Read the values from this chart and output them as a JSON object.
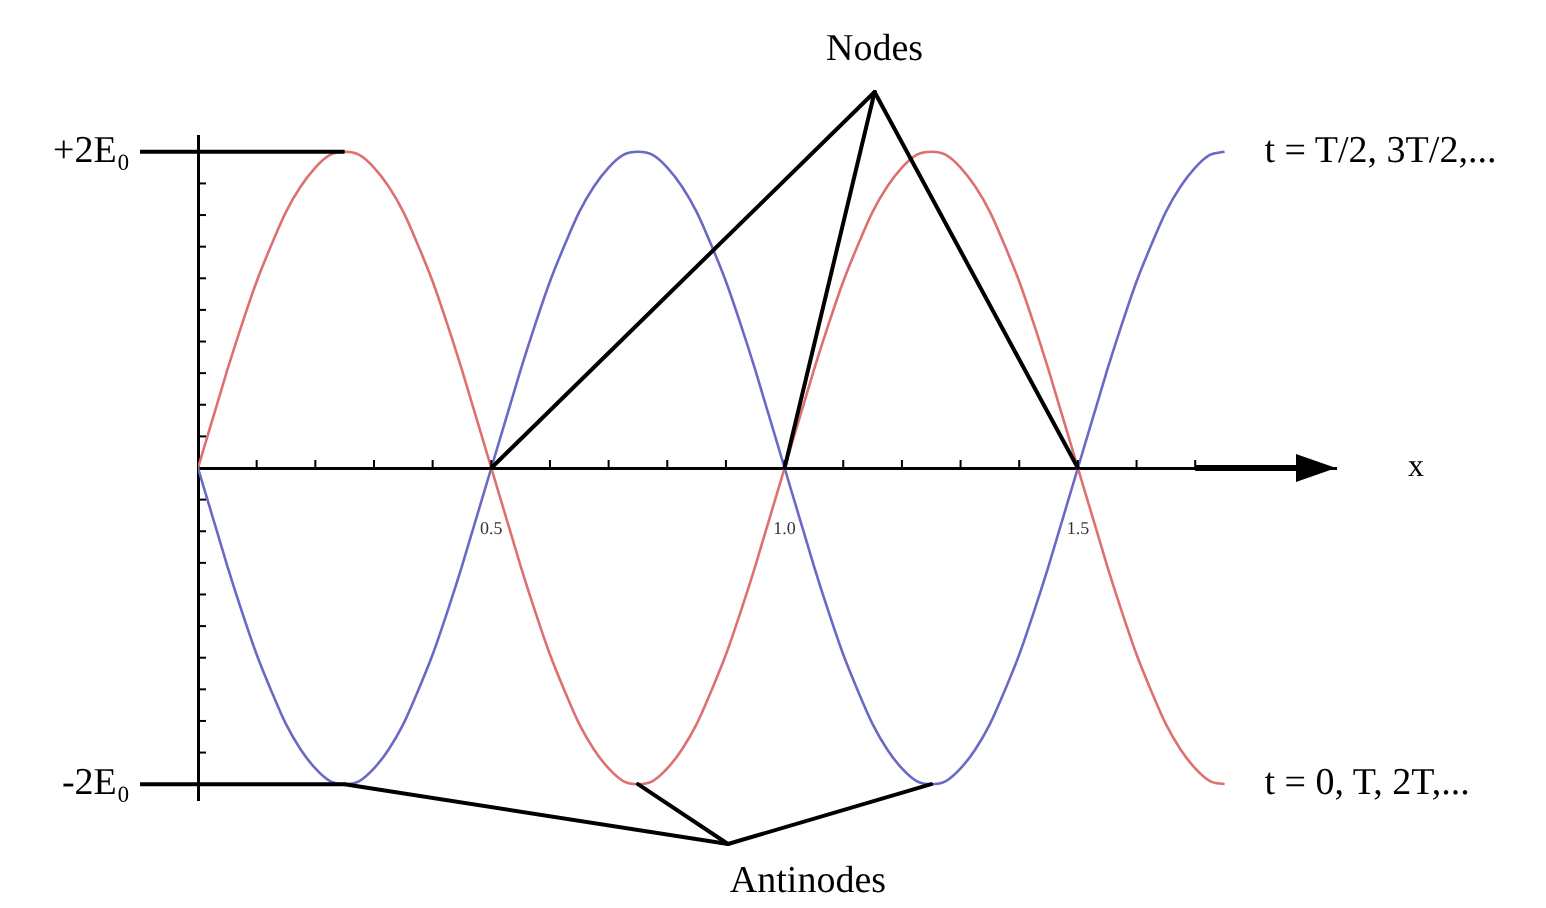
{
  "chart_data": {
    "type": "line",
    "xlabel": "x",
    "x": [
      0,
      0.025,
      0.05,
      0.075,
      0.1,
      0.125,
      0.15,
      0.175,
      0.2,
      0.225,
      0.25,
      0.275,
      0.3,
      0.325,
      0.35,
      0.375,
      0.4,
      0.425,
      0.45,
      0.475,
      0.5,
      0.525,
      0.55,
      0.575,
      0.6,
      0.625,
      0.65,
      0.675,
      0.7,
      0.725,
      0.75,
      0.775,
      0.8,
      0.825,
      0.85,
      0.875,
      0.9,
      0.925,
      0.95,
      0.975,
      1,
      1.025,
      1.05,
      1.075,
      1.1,
      1.125,
      1.15,
      1.175,
      1.2,
      1.225,
      1.25,
      1.275,
      1.3,
      1.325,
      1.35,
      1.375,
      1.4,
      1.425,
      1.45,
      1.475,
      1.5,
      1.525,
      1.55,
      1.575,
      1.6,
      1.625,
      1.65,
      1.675,
      1.7,
      1.725,
      1.75
    ],
    "series": [
      {
        "name": "t = 0, T, 2T,...",
        "color": "#dd7070",
        "values": [
          0,
          0.31,
          0.62,
          0.91,
          1.18,
          1.41,
          1.62,
          1.78,
          1.9,
          1.98,
          2,
          1.98,
          1.9,
          1.78,
          1.62,
          1.41,
          1.18,
          0.91,
          0.62,
          0.31,
          0,
          -0.31,
          -0.62,
          -0.91,
          -1.18,
          -1.41,
          -1.62,
          -1.78,
          -1.9,
          -1.98,
          -2,
          -1.98,
          -1.9,
          -1.78,
          -1.62,
          -1.41,
          -1.18,
          -0.91,
          -0.62,
          -0.31,
          0,
          0.31,
          0.62,
          0.91,
          1.18,
          1.41,
          1.62,
          1.78,
          1.9,
          1.98,
          2,
          1.98,
          1.9,
          1.78,
          1.62,
          1.41,
          1.18,
          0.91,
          0.62,
          0.31,
          0,
          -0.31,
          -0.62,
          -0.91,
          -1.18,
          -1.41,
          -1.62,
          -1.78,
          -1.9,
          -1.98,
          -2
        ]
      },
      {
        "name": "t = T/2, 3T/2,...",
        "color": "#6a6ac4",
        "values": [
          0,
          -0.31,
          -0.62,
          -0.91,
          -1.18,
          -1.41,
          -1.62,
          -1.78,
          -1.9,
          -1.98,
          -2,
          -1.98,
          -1.9,
          -1.78,
          -1.62,
          -1.41,
          -1.18,
          -0.91,
          -0.62,
          -0.31,
          0,
          0.31,
          0.62,
          0.91,
          1.18,
          1.41,
          1.62,
          1.78,
          1.9,
          1.98,
          2,
          1.98,
          1.9,
          1.78,
          1.62,
          1.41,
          1.18,
          0.91,
          0.62,
          0.31,
          0,
          -0.31,
          -0.62,
          -0.91,
          -1.18,
          -1.41,
          -1.62,
          -1.78,
          -1.9,
          -1.98,
          -2,
          -1.98,
          -1.9,
          -1.78,
          -1.62,
          -1.41,
          -1.18,
          -0.91,
          -0.62,
          -0.31,
          0,
          0.31,
          0.62,
          0.91,
          1.18,
          1.41,
          1.62,
          1.78,
          1.9,
          1.98,
          2
        ]
      }
    ],
    "xlim": [
      0,
      1.94
    ],
    "xticks": [
      {
        "value": 0.1,
        "label": null
      },
      {
        "value": 0.2,
        "label": null
      },
      {
        "value": 0.3,
        "label": null
      },
      {
        "value": 0.4,
        "label": null
      },
      0.5,
      {
        "value": 0.6,
        "label": null
      },
      {
        "value": 0.7,
        "label": null
      },
      {
        "value": 0.8,
        "label": null
      },
      {
        "value": 0.9,
        "label": null
      },
      {
        "value": 1,
        "label": "1.0"
      },
      {
        "value": 1.1,
        "label": null
      },
      {
        "value": 1.2,
        "label": null
      },
      {
        "value": 1.3,
        "label": null
      },
      {
        "value": 1.4,
        "label": null
      },
      1.5,
      {
        "value": 1.6,
        "label": null
      },
      {
        "value": 1.7,
        "label": null
      }
    ],
    "ylim": [
      -2.1,
      2.1
    ],
    "yticks": [
      {
        "value": -2,
        "label": "-2E₀"
      },
      {
        "value": -1.8,
        "label": null
      },
      {
        "value": -1.6,
        "label": null
      },
      {
        "value": -1.4,
        "label": null
      },
      {
        "value": -1.2,
        "label": null
      },
      {
        "value": -1,
        "label": null
      },
      {
        "value": -0.8,
        "label": null
      },
      {
        "value": -0.6,
        "label": null
      },
      {
        "value": -0.4,
        "label": null
      },
      {
        "value": -0.2,
        "label": null
      },
      {
        "value": 0.2,
        "label": null
      },
      {
        "value": 0.4,
        "label": null
      },
      {
        "value": 0.6,
        "label": null
      },
      {
        "value": 0.8,
        "label": null
      },
      {
        "value": 1,
        "label": null
      },
      {
        "value": 1.2,
        "label": null
      },
      {
        "value": 1.4,
        "label": null
      },
      {
        "value": 1.6,
        "label": null
      },
      {
        "value": 1.8,
        "label": null
      },
      {
        "value": 2,
        "label": "+2E₀"
      }
    ],
    "annotations": [
      {
        "text": "Nodes",
        "x": 1,
        "y": 0
      },
      {
        "text": "Antinodes",
        "x": 0.75,
        "y": -2
      }
    ]
  }
}
